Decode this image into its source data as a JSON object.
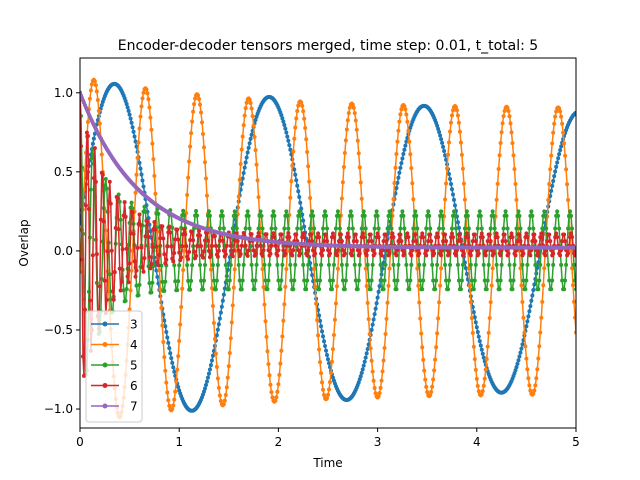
{
  "chart_data": {
    "type": "line",
    "title": "Encoder-decoder tensors merged, time step: 0.01, t_total: 5",
    "xlabel": "Time",
    "ylabel": "Overlap",
    "xlim": [
      0,
      5
    ],
    "ylim": [
      -1.12,
      1.22
    ],
    "xticks": [
      0,
      1,
      2,
      3,
      4,
      5
    ],
    "xtick_labels": [
      "0",
      "1",
      "2",
      "3",
      "4",
      "5"
    ],
    "yticks": [
      -1.0,
      -0.5,
      0.0,
      0.5,
      1.0
    ],
    "ytick_labels": [
      "−1.0",
      "−0.5",
      "0.0",
      "0.5",
      "1.0"
    ],
    "grid": false,
    "legend_position": "lower left",
    "marker": "circle",
    "x": {
      "start": 0,
      "stop": 5,
      "step": 0.01
    },
    "series": [
      {
        "name": "3",
        "color": "#1f77b4",
        "model": "damped-cosine",
        "params": {
          "base": 0.0,
          "amp_start": 1.08,
          "amp_end": 0.8,
          "decay": 4.0,
          "period": 1.56,
          "phase": 0.35
        }
      },
      {
        "name": "4",
        "color": "#ff7f0e",
        "model": "damped-cosine",
        "params": {
          "base": 0.0,
          "amp_start": 1.1,
          "amp_end": 0.9,
          "decay": 1.5,
          "period": 0.52,
          "phase": 0.66
        }
      },
      {
        "name": "5",
        "color": "#2ca02c",
        "model": "damped-cosine",
        "params": {
          "base": 0.0,
          "amp_start": 1.0,
          "amp_end": 0.25,
          "decay": 0.2,
          "period": 0.13,
          "phase": 0.0
        }
      },
      {
        "name": "6",
        "color": "#d62728",
        "model": "damped-cosine",
        "params": {
          "base": 0.04,
          "amp_start": 0.96,
          "amp_end": 0.07,
          "decay": 0.3,
          "period": 0.075,
          "phase": 0.0
        }
      },
      {
        "name": "7",
        "color": "#9467bd",
        "model": "exp-decay",
        "params": {
          "start": 1.0,
          "end": 0.02,
          "decay": 0.6
        }
      }
    ]
  }
}
